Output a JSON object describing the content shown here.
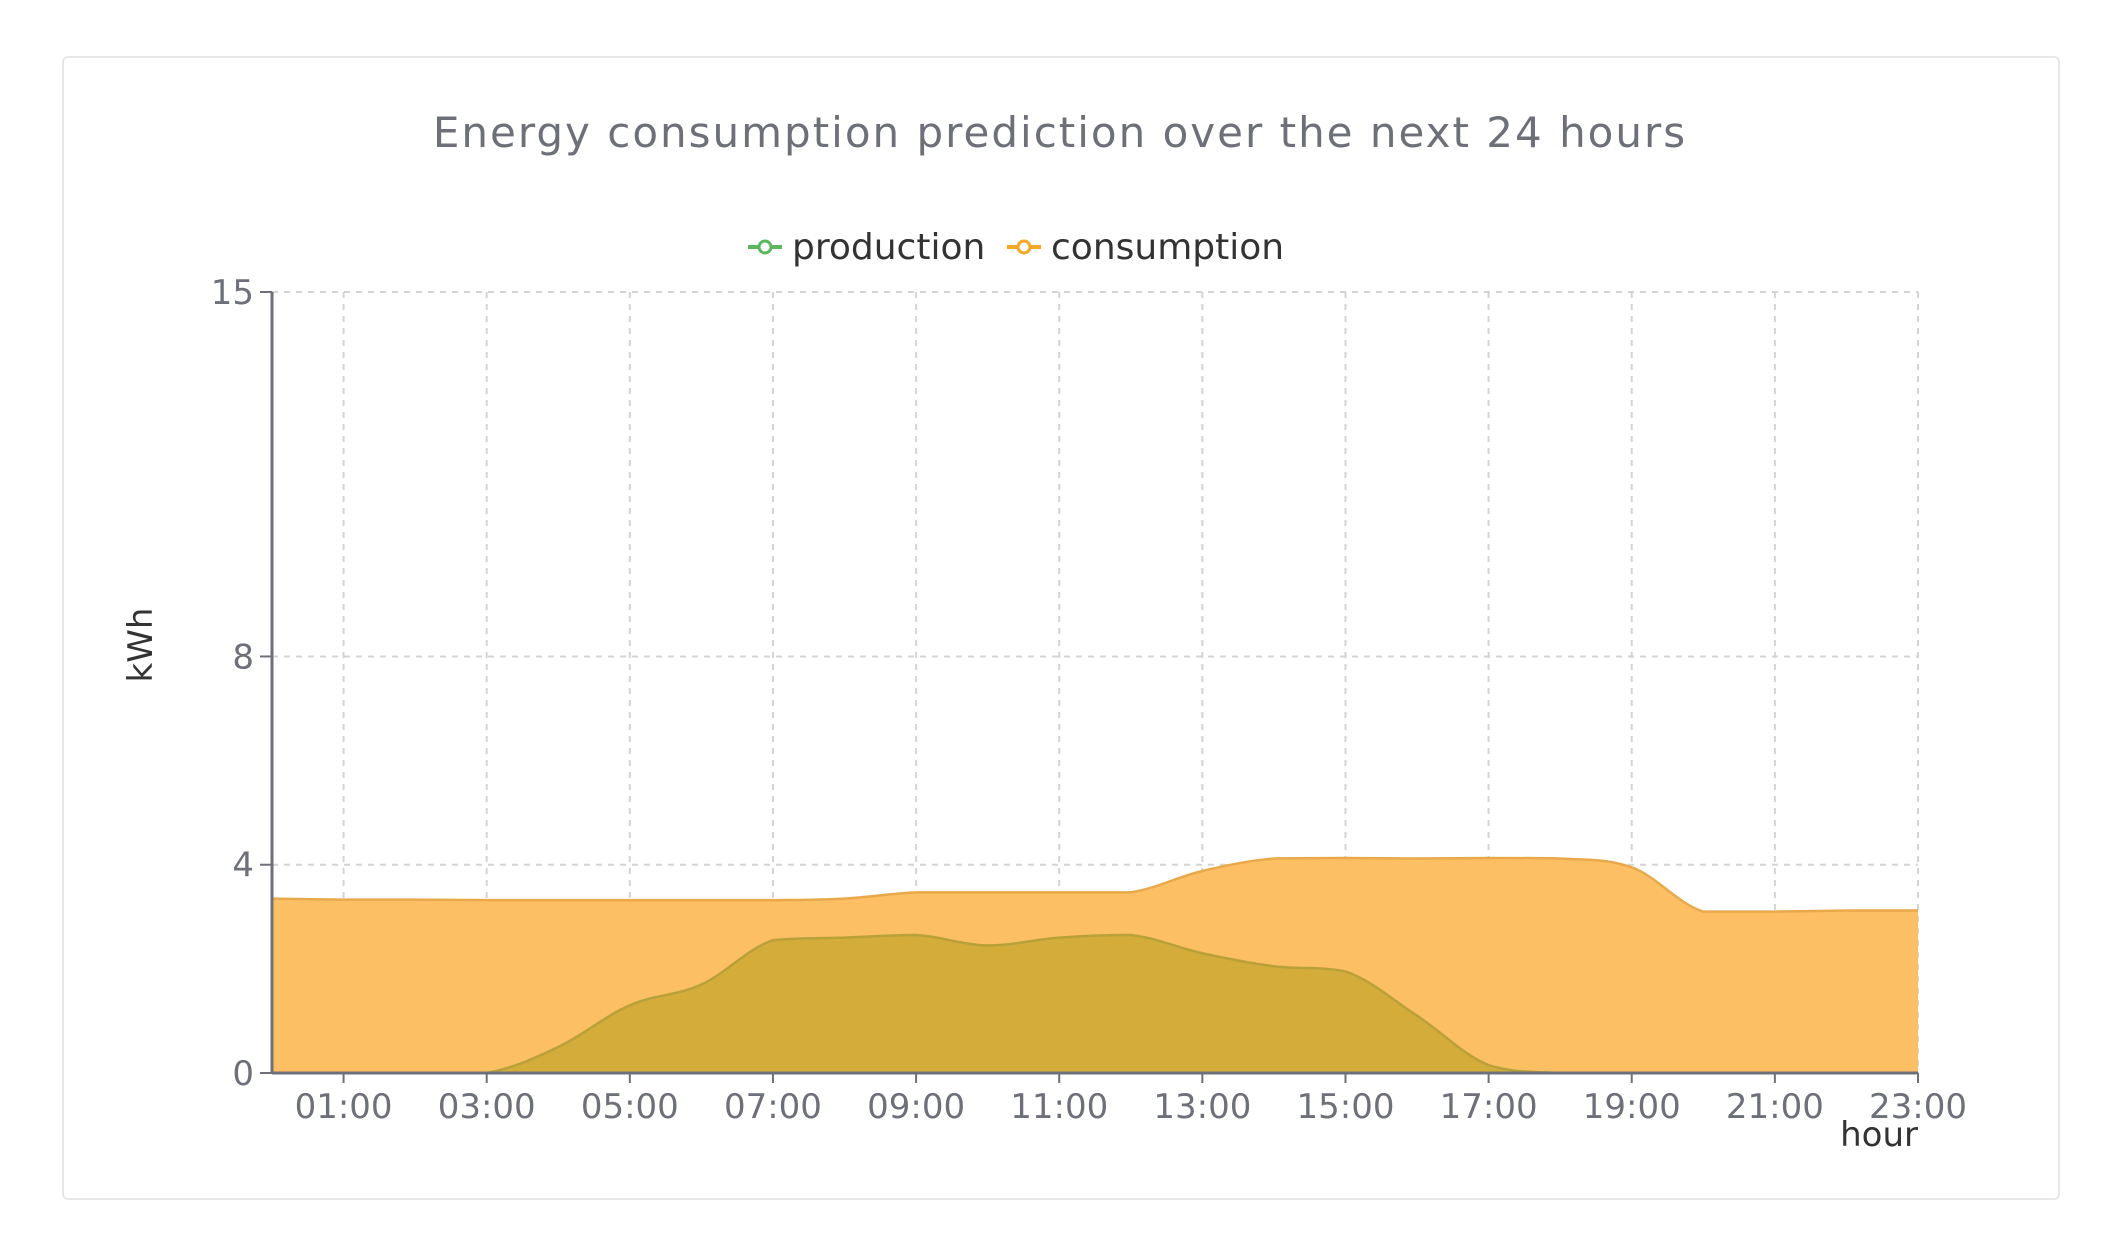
{
  "chart_data": {
    "type": "area",
    "title": "Energy consumption prediction over the next 24 hours",
    "xlabel": "hour",
    "ylabel": "kWh",
    "x": [
      "00:00",
      "01:00",
      "02:00",
      "03:00",
      "04:00",
      "05:00",
      "06:00",
      "07:00",
      "08:00",
      "09:00",
      "10:00",
      "11:00",
      "12:00",
      "13:00",
      "14:00",
      "15:00",
      "16:00",
      "17:00",
      "18:00",
      "19:00",
      "20:00",
      "21:00",
      "22:00",
      "23:00"
    ],
    "x_tick_labels": [
      "01:00",
      "03:00",
      "05:00",
      "07:00",
      "09:00",
      "11:00",
      "13:00",
      "15:00",
      "17:00",
      "19:00",
      "21:00",
      "23:00"
    ],
    "y_ticks": [
      0,
      4,
      8,
      15
    ],
    "ylim": [
      0,
      15
    ],
    "grid": true,
    "legend_position": "top-center",
    "series": [
      {
        "name": "production",
        "color": "#5cb85c",
        "fill": "#d4ac3a",
        "values": [
          0,
          0,
          0,
          0,
          0.5,
          1.3,
          1.7,
          2.55,
          2.6,
          2.65,
          2.45,
          2.6,
          2.65,
          2.3,
          2.05,
          1.95,
          1.1,
          0.15,
          0,
          0,
          0,
          0,
          0,
          0
        ]
      },
      {
        "name": "consumption",
        "color": "#f5a623",
        "fill": "#fcbf63",
        "values": [
          3.35,
          3.33,
          3.33,
          3.32,
          3.32,
          3.32,
          3.32,
          3.32,
          3.35,
          3.47,
          3.47,
          3.47,
          3.47,
          3.88,
          4.12,
          4.13,
          4.12,
          4.13,
          4.12,
          3.95,
          3.1,
          3.1,
          3.12,
          3.12
        ]
      }
    ]
  }
}
